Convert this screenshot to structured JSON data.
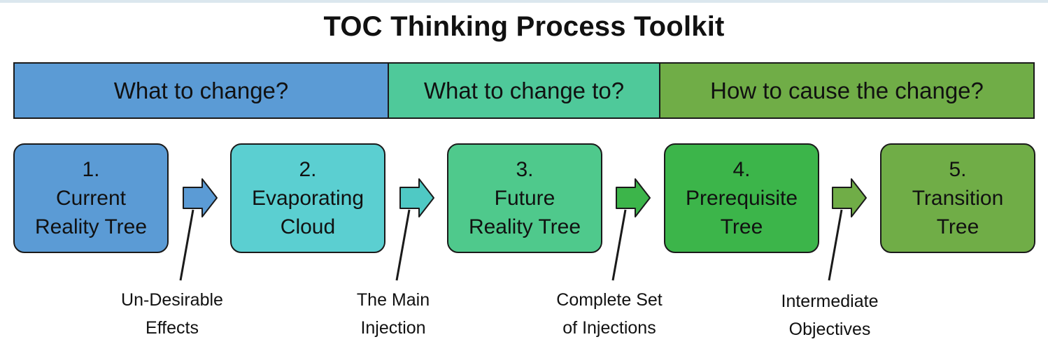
{
  "title": "TOC Thinking Process Toolkit",
  "phases": [
    {
      "label": "What to change?",
      "color": "#5b9bd5"
    },
    {
      "label": "What to change to?",
      "color": "#4fc99a"
    },
    {
      "label": "How to cause the change?",
      "color": "#70ad47"
    }
  ],
  "steps": [
    {
      "number": "1.",
      "line1": "Current",
      "line2": "Reality Tree",
      "color": "#5b9bd5"
    },
    {
      "number": "2.",
      "line1": "Evaporating",
      "line2": "Cloud",
      "color": "#5bcfd1"
    },
    {
      "number": "3.",
      "line1": "Future",
      "line2": "Reality Tree",
      "color": "#4fc98c"
    },
    {
      "number": "4.",
      "line1": "Prerequisite",
      "line2": "Tree",
      "color": "#3cb54a"
    },
    {
      "number": "5.",
      "line1": "Transition",
      "line2": "Tree",
      "color": "#70ad47"
    }
  ],
  "arrow_colors": [
    "#5b9bd5",
    "#4fc9c4",
    "#3cb54a",
    "#70ad47"
  ],
  "outputs": [
    {
      "line1": "Un-Desirable",
      "line2": "Effects"
    },
    {
      "line1": "The Main",
      "line2": "Injection"
    },
    {
      "line1": "Complete Set",
      "line2": "of Injections"
    },
    {
      "line1": "Intermediate",
      "line2": "Objectives"
    }
  ]
}
